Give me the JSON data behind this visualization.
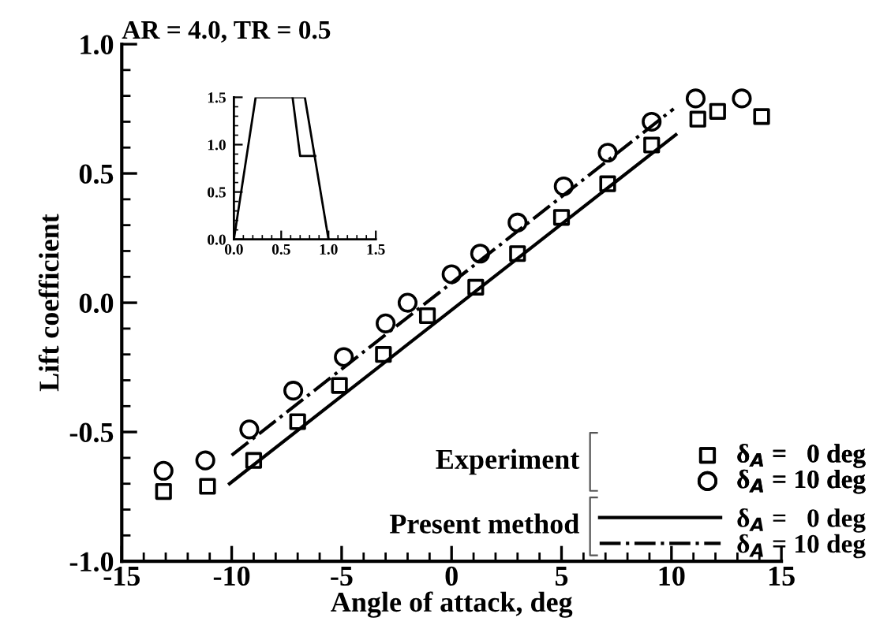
{
  "chart_data": [
    {
      "type": "scatter",
      "title": "AR = 4.0, TR = 0.5",
      "xlabel": "Angle of attack, deg",
      "ylabel": "Lift coefficient",
      "xlim": [
        -15,
        15
      ],
      "ylim": [
        -1.0,
        1.0
      ],
      "xticks": [
        -15,
        -10,
        -5,
        0,
        5,
        10,
        15
      ],
      "yticks": [
        {
          "value": -1.0,
          "label": "-1.0"
        },
        {
          "value": -0.5,
          "label": "-0.5"
        },
        {
          "value": 0.0,
          "label": "0.0"
        },
        {
          "value": 0.5,
          "label": "0.5"
        },
        {
          "value": 1.0,
          "label": "1.0"
        }
      ],
      "legend": "bottom right",
      "grid": false,
      "annotations": [
        "Experiment",
        "Present method"
      ],
      "series": [
        {
          "name": "δ$_{A}$ =   0 deg",
          "type": "scatter",
          "marker": "square",
          "color": "#000000",
          "x": [
            -13.1,
            -11.1,
            -9.0,
            -7.0,
            -5.1,
            -3.1,
            -1.1,
            1.1,
            3.0,
            5.0,
            7.1,
            9.1,
            11.2,
            12.1,
            14.1
          ],
          "values": [
            -0.73,
            -0.71,
            -0.61,
            -0.46,
            -0.32,
            -0.2,
            -0.05,
            0.06,
            0.19,
            0.33,
            0.46,
            0.61,
            0.71,
            0.74,
            0.72
          ]
        },
        {
          "name": "δ$_{A}$ = 10 deg",
          "type": "scatter",
          "marker": "circle",
          "color": "#000000",
          "x": [
            -13.1,
            -11.2,
            -9.2,
            -7.2,
            -4.9,
            -3.0,
            -2.0,
            0.0,
            1.3,
            3.0,
            5.1,
            7.1,
            9.1,
            11.1,
            13.2
          ],
          "values": [
            -0.65,
            -0.61,
            -0.49,
            -0.34,
            -0.21,
            -0.08,
            0.0,
            0.11,
            0.19,
            0.31,
            0.45,
            0.58,
            0.7,
            0.79,
            0.79
          ]
        },
        {
          "name": "δ$_{A}$ =   0 deg",
          "type": "line",
          "line_style": "solid",
          "color": "#000000",
          "x": [
            -10.1,
            10.2
          ],
          "values": [
            -0.7,
            0.65
          ]
        },
        {
          "name": "δ$_{A}$ = 10 deg",
          "type": "line",
          "line_style": "dashdot",
          "color": "#000000",
          "x": [
            -10.0,
            10.1
          ],
          "values": [
            -0.59,
            0.75
          ]
        }
      ]
    },
    {
      "type": "line",
      "xlim": [
        0.0,
        1.5
      ],
      "ylim": [
        0.0,
        1.5
      ],
      "xticks": [
        {
          "value": 0.0,
          "label": "0.0"
        },
        {
          "value": 0.5,
          "label": "0.5"
        },
        {
          "value": 1.0,
          "label": "1.0"
        },
        {
          "value": 1.5,
          "label": "1.5"
        }
      ],
      "yticks": [
        {
          "value": 0.0,
          "label": "0.0"
        },
        {
          "value": 0.5,
          "label": "0.5"
        },
        {
          "value": 1.0,
          "label": "1.0"
        },
        {
          "value": 1.5,
          "label": "1.5"
        }
      ],
      "grid": false,
      "legend": false,
      "series": [
        {
          "color": "#000000",
          "x": [
            0.0,
            0.23,
            0.75,
            1.0
          ],
          "values": [
            0.0,
            1.5,
            1.5,
            0.0
          ]
        },
        {
          "color": "#000000",
          "x": [
            0.62,
            0.7,
            0.86
          ],
          "values": [
            1.5,
            0.88,
            0.88
          ]
        }
      ]
    }
  ]
}
